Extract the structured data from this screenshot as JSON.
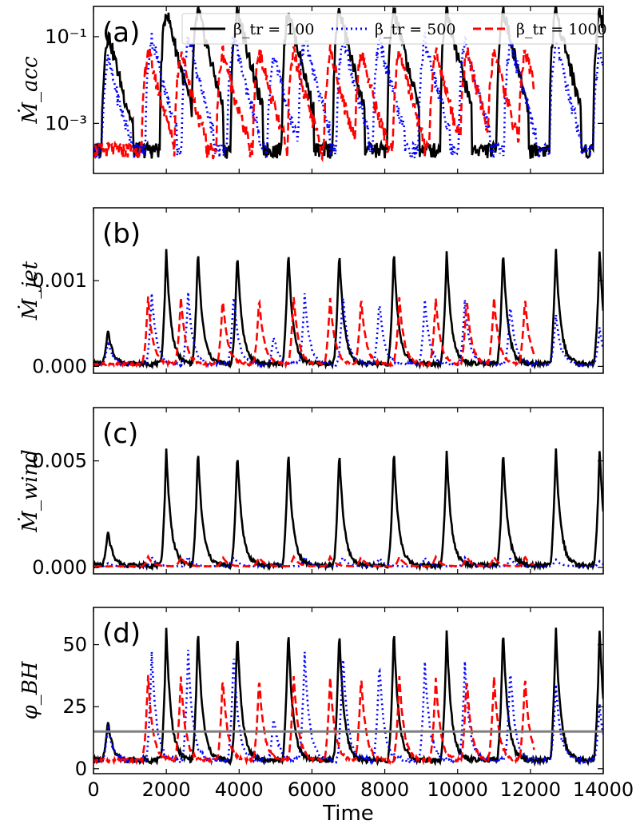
{
  "chart_data": {
    "type": "line",
    "x_label": "Time",
    "x_range": [
      0,
      14000
    ],
    "x_ticks": [
      0,
      2000,
      4000,
      6000,
      8000,
      10000,
      12000,
      14000
    ],
    "x_tick_labels": [
      "0",
      "2000",
      "4000",
      "6000",
      "8000",
      "10000",
      "12000",
      "14000"
    ],
    "series": [
      {
        "name": "β_tr = 100",
        "legend_label": "β_tr = 100",
        "color": "#000000",
        "style": "solid",
        "t_end": 14000,
        "flare_times": [
          400,
          2000,
          2870,
          3950,
          5350,
          6750,
          8250,
          9700,
          11250,
          12700,
          13900
        ],
        "flare_scale": [
          0.3,
          1.0,
          1.0,
          1.0,
          1.0,
          1.0,
          1.0,
          1.0,
          1.0,
          1.0,
          1.0
        ]
      },
      {
        "name": "β_tr = 500",
        "legend_label": "β_tr = 500",
        "color": "#0000ff",
        "style": "dotted",
        "t_end": 14000,
        "flare_times": [
          400,
          1600,
          2600,
          3850,
          4950,
          5800,
          6850,
          7850,
          9100,
          10200,
          11450,
          12700,
          13900
        ],
        "flare_scale": [
          0.3,
          1.0,
          1.0,
          1.0,
          0.4,
          1.0,
          1.0,
          0.9,
          0.9,
          0.9,
          0.85,
          0.7,
          0.5
        ]
      },
      {
        "name": "β_tr = 1000",
        "legend_label": "β_tr = 1000",
        "color": "#ff0000",
        "style": "dashed",
        "t_end": 12100,
        "flare_times": [
          1500,
          2400,
          3550,
          4550,
          5500,
          6500,
          7350,
          8400,
          9400,
          10250,
          11000,
          11850
        ],
        "flare_scale": [
          1.0,
          1.0,
          1.0,
          1.0,
          1.0,
          1.0,
          1.0,
          1.0,
          1.0,
          1.0,
          1.0,
          1.0
        ]
      }
    ],
    "panels": [
      {
        "id": "a",
        "label": "(a)",
        "ylabel": "Ṁ_acc",
        "yscale": "log",
        "ylim": [
          7e-05,
          0.5
        ],
        "yticks": [
          0.1,
          0.001
        ],
        "ytick_labels": [
          "10⁻¹",
          "10⁻³"
        ],
        "baseline": [
          0.00015,
          0.00015,
          0.00015
        ],
        "peak": [
          0.25,
          0.06,
          0.03
        ]
      },
      {
        "id": "b",
        "label": "(b)",
        "ylabel": "Ṁ_jet",
        "yscale": "linear",
        "ylim": [
          -8e-05,
          0.00185
        ],
        "yticks": [
          0,
          0.001
        ],
        "ytick_labels": [
          "0.000",
          "0.001"
        ],
        "baseline": [
          2e-05,
          2e-05,
          2e-05
        ],
        "peak": [
          0.00135,
          0.00085,
          0.0008
        ]
      },
      {
        "id": "c",
        "label": "(c)",
        "ylabel": "Ṁ_wind",
        "yscale": "linear",
        "ylim": [
          -0.0003,
          0.0075
        ],
        "yticks": [
          0,
          0.005
        ],
        "ytick_labels": [
          "0.000",
          "0.005"
        ],
        "baseline": [
          5e-05,
          5e-05,
          5e-05
        ],
        "peak": [
          0.0055,
          0.0005,
          0.0005
        ]
      },
      {
        "id": "d",
        "label": "(d)",
        "ylabel": "φ_BH",
        "yscale": "linear",
        "ylim": [
          -2,
          65
        ],
        "yticks": [
          0,
          25,
          50
        ],
        "ytick_labels": [
          "0",
          "25",
          "50"
        ],
        "baseline": [
          3,
          3,
          3
        ],
        "peak": [
          56,
          47,
          37
        ],
        "hline": 15,
        "hline_color": "#808080"
      }
    ]
  }
}
